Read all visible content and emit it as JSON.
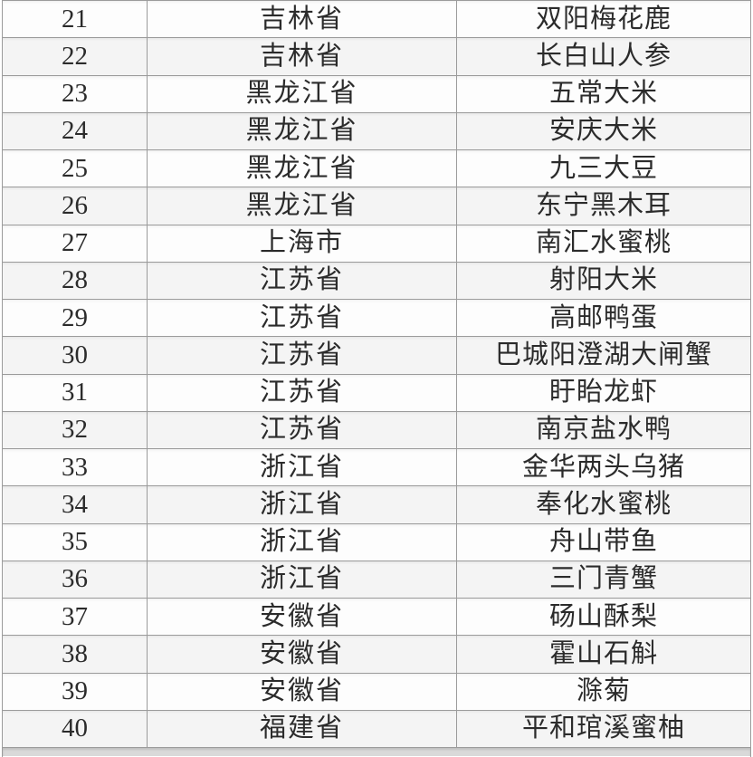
{
  "colors": {
    "border": "#9b9b9b",
    "text": "#2b2b2b",
    "row_bg": "#fdfdfd",
    "row_alt": "#f4f4f4",
    "strip": "#d9d9d9"
  },
  "table": {
    "rows": [
      {
        "no": "21",
        "province": "吉林省",
        "product": "双阳梅花鹿"
      },
      {
        "no": "22",
        "province": "吉林省",
        "product": "长白山人参"
      },
      {
        "no": "23",
        "province": "黑龙江省",
        "product": "五常大米"
      },
      {
        "no": "24",
        "province": "黑龙江省",
        "product": "安庆大米"
      },
      {
        "no": "25",
        "province": "黑龙江省",
        "product": "九三大豆"
      },
      {
        "no": "26",
        "province": "黑龙江省",
        "product": "东宁黑木耳"
      },
      {
        "no": "27",
        "province": "上海市",
        "product": "南汇水蜜桃"
      },
      {
        "no": "28",
        "province": "江苏省",
        "product": "射阳大米"
      },
      {
        "no": "29",
        "province": "江苏省",
        "product": "高邮鸭蛋"
      },
      {
        "no": "30",
        "province": "江苏省",
        "product": "巴城阳澄湖大闸蟹"
      },
      {
        "no": "31",
        "province": "江苏省",
        "product": "盱眙龙虾"
      },
      {
        "no": "32",
        "province": "江苏省",
        "product": "南京盐水鸭"
      },
      {
        "no": "33",
        "province": "浙江省",
        "product": "金华两头乌猪"
      },
      {
        "no": "34",
        "province": "浙江省",
        "product": "奉化水蜜桃"
      },
      {
        "no": "35",
        "province": "浙江省",
        "product": "舟山带鱼"
      },
      {
        "no": "36",
        "province": "浙江省",
        "product": "三门青蟹"
      },
      {
        "no": "37",
        "province": "安徽省",
        "product": "砀山酥梨"
      },
      {
        "no": "38",
        "province": "安徽省",
        "product": "霍山石斛"
      },
      {
        "no": "39",
        "province": "安徽省",
        "product": "滁菊"
      },
      {
        "no": "40",
        "province": "福建省",
        "product": "平和琯溪蜜柚"
      }
    ]
  }
}
